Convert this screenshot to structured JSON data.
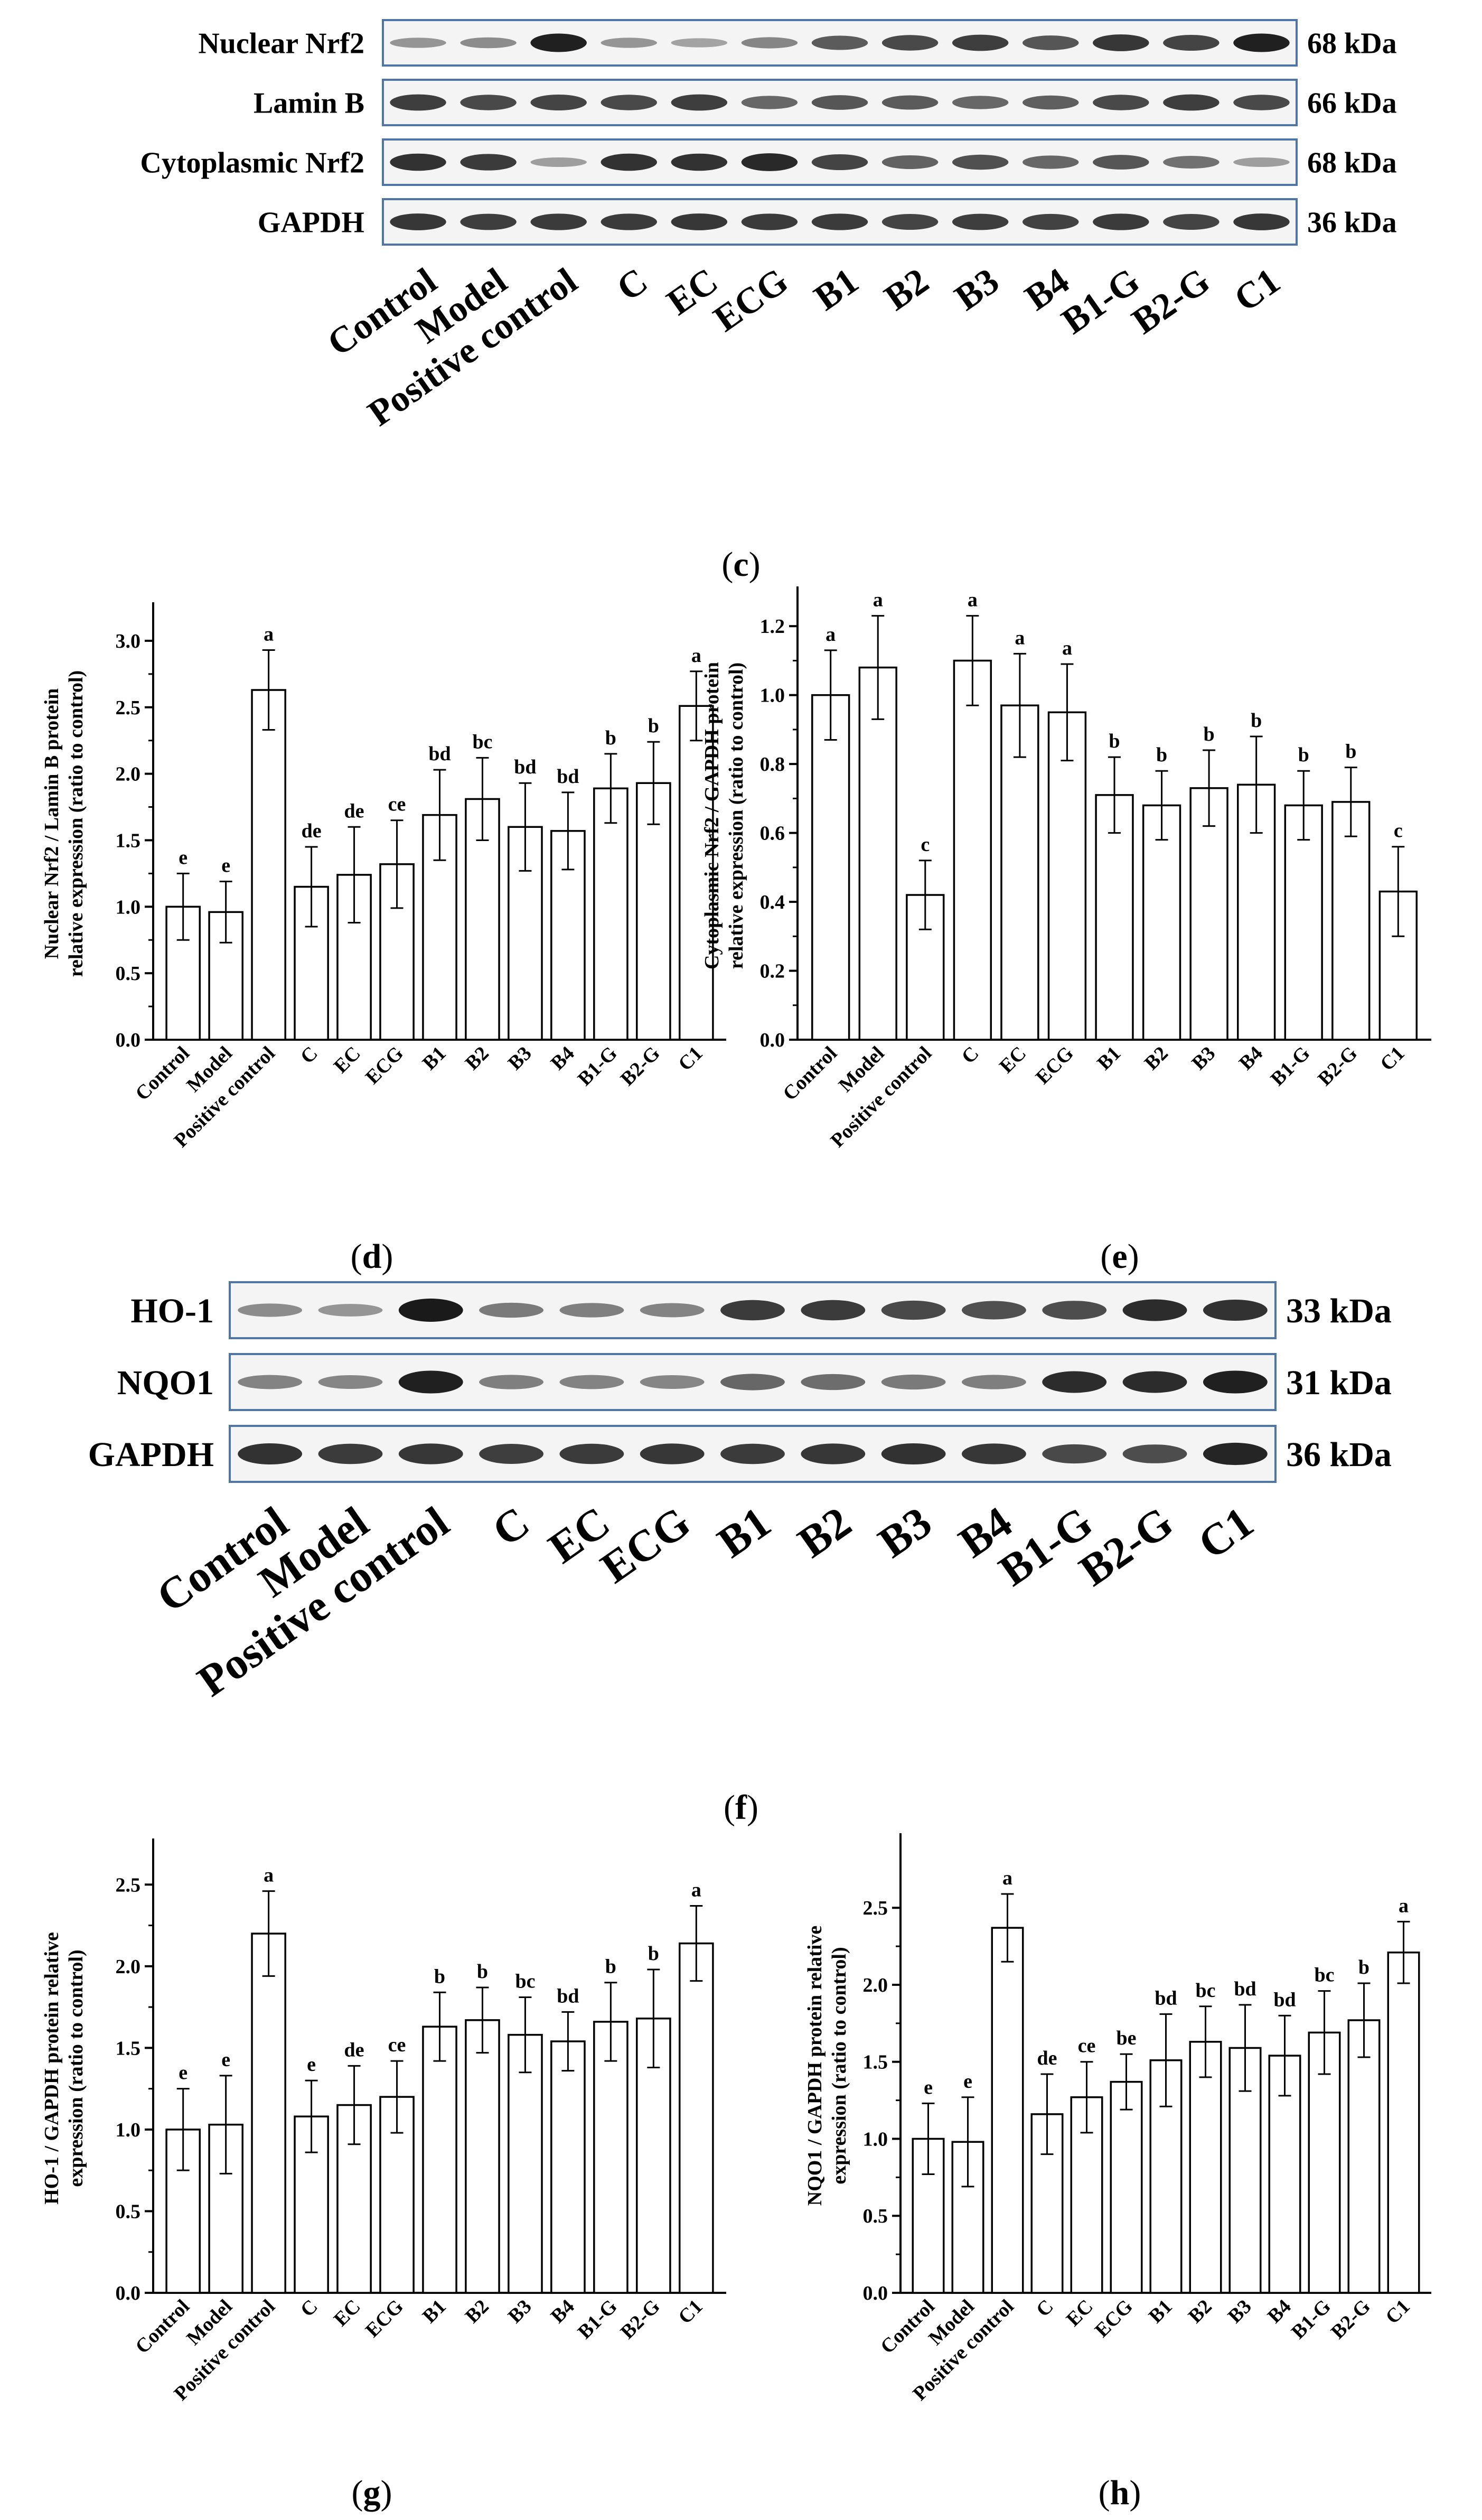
{
  "blot_c": {
    "panel_label": "c",
    "rows": [
      {
        "name": "Nuclear Nrf2",
        "mw": "68 kDa",
        "intensity": [
          0.3,
          0.35,
          0.95,
          0.3,
          0.22,
          0.38,
          0.62,
          0.72,
          0.78,
          0.65,
          0.82,
          0.75,
          0.95
        ]
      },
      {
        "name": "Lamin B",
        "mw": "66 kDa",
        "intensity": [
          0.78,
          0.72,
          0.75,
          0.72,
          0.78,
          0.55,
          0.65,
          0.62,
          0.55,
          0.6,
          0.72,
          0.78,
          0.72
        ]
      },
      {
        "name": "Cytoplasmic Nrf2",
        "mw": "68 kDa",
        "intensity": [
          0.85,
          0.8,
          0.25,
          0.85,
          0.85,
          0.9,
          0.75,
          0.58,
          0.68,
          0.55,
          0.65,
          0.5,
          0.25
        ]
      },
      {
        "name": "GAPDH",
        "mw": "36 kDa",
        "intensity": [
          0.82,
          0.78,
          0.8,
          0.8,
          0.82,
          0.8,
          0.8,
          0.75,
          0.78,
          0.76,
          0.8,
          0.75,
          0.82
        ]
      }
    ],
    "lanes": [
      "Control",
      "Model",
      "Positive control",
      "C",
      "EC",
      "ECG",
      "B1",
      "B2",
      "B3",
      "B4",
      "B1-G",
      "B2-G",
      "C1"
    ]
  },
  "blot_f": {
    "panel_label": "f",
    "rows": [
      {
        "name": "HO-1",
        "mw": "33 kDa",
        "intensity": [
          0.35,
          0.3,
          0.98,
          0.45,
          0.42,
          0.4,
          0.8,
          0.8,
          0.72,
          0.68,
          0.7,
          0.88,
          0.85
        ]
      },
      {
        "name": "NQO1",
        "mw": "31 kDa",
        "intensity": [
          0.4,
          0.38,
          0.95,
          0.42,
          0.4,
          0.38,
          0.55,
          0.52,
          0.45,
          0.42,
          0.88,
          0.88,
          0.95
        ]
      },
      {
        "name": "GAPDH",
        "mw": "36 kDa",
        "intensity": [
          0.85,
          0.8,
          0.82,
          0.78,
          0.8,
          0.82,
          0.8,
          0.82,
          0.85,
          0.82,
          0.72,
          0.7,
          0.92
        ]
      }
    ],
    "lanes": [
      "Control",
      "Model",
      "Positive control",
      "C",
      "EC",
      "ECG",
      "B1",
      "B2",
      "B3",
      "B4",
      "B1-G",
      "B2-G",
      "C1"
    ]
  },
  "chart_data": [
    {
      "id": "d",
      "panel_label": "d",
      "type": "bar",
      "ylabel_lines": [
        "Nuclear Nrf2 / Lamin B protein",
        "relative expression (ratio to control)"
      ],
      "ylim": [
        0.0,
        3.25
      ],
      "yticks": [
        "0.0",
        "0.5",
        "1.0",
        "1.5",
        "2.0",
        "2.5",
        "3.0"
      ],
      "categories": [
        "Control",
        "Model",
        "Positive control",
        "C",
        "EC",
        "ECG",
        "B1",
        "B2",
        "B3",
        "B4",
        "B1-G",
        "B2-G",
        "C1"
      ],
      "values": [
        1.0,
        0.96,
        2.63,
        1.15,
        1.24,
        1.32,
        1.69,
        1.81,
        1.6,
        1.57,
        1.89,
        1.93,
        2.51
      ],
      "errors": [
        0.25,
        0.23,
        0.3,
        0.3,
        0.36,
        0.33,
        0.34,
        0.31,
        0.33,
        0.29,
        0.26,
        0.31,
        0.26
      ],
      "letters": [
        "e",
        "e",
        "a",
        "de",
        "de",
        "ce",
        "bd",
        "bc",
        "bd",
        "bd",
        "b",
        "b",
        "a"
      ]
    },
    {
      "id": "e",
      "panel_label": "e",
      "type": "bar",
      "ylabel_lines": [
        "Cytoplasmic Nrf2 / GAPDH protein",
        "relative expression (ratio to control)"
      ],
      "ylim": [
        0.0,
        1.3
      ],
      "yticks": [
        "0.0",
        "0.2",
        "0.4",
        "0.6",
        "0.8",
        "1.0",
        "1.2"
      ],
      "categories": [
        "Control",
        "Model",
        "Positive control",
        "C",
        "EC",
        "ECG",
        "B1",
        "B2",
        "B3",
        "B4",
        "B1-G",
        "B2-G",
        "C1"
      ],
      "values": [
        1.0,
        1.08,
        0.42,
        1.1,
        0.97,
        0.95,
        0.71,
        0.68,
        0.73,
        0.74,
        0.68,
        0.69,
        0.43
      ],
      "errors": [
        0.13,
        0.15,
        0.1,
        0.13,
        0.15,
        0.14,
        0.11,
        0.1,
        0.11,
        0.14,
        0.1,
        0.1,
        0.13
      ],
      "letters": [
        "a",
        "a",
        "c",
        "a",
        "a",
        "a",
        "b",
        "b",
        "b",
        "b",
        "b",
        "b",
        "c"
      ]
    },
    {
      "id": "g",
      "panel_label": "g",
      "type": "bar",
      "ylabel_lines": [
        "HO-1 / GAPDH protein relative",
        "expression (ratio to control)"
      ],
      "ylim": [
        0.0,
        2.75
      ],
      "yticks": [
        "0.0",
        "0.5",
        "1.0",
        "1.5",
        "2.0",
        "2.5"
      ],
      "categories": [
        "Control",
        "Model",
        "Positive control",
        "C",
        "EC",
        "ECG",
        "B1",
        "B2",
        "B3",
        "B4",
        "B1-G",
        "B2-G",
        "C1"
      ],
      "values": [
        1.0,
        1.03,
        2.2,
        1.08,
        1.15,
        1.2,
        1.63,
        1.67,
        1.58,
        1.54,
        1.66,
        1.68,
        2.14
      ],
      "errors": [
        0.25,
        0.3,
        0.26,
        0.22,
        0.24,
        0.22,
        0.21,
        0.2,
        0.23,
        0.18,
        0.24,
        0.3,
        0.23
      ],
      "letters": [
        "e",
        "e",
        "a",
        "e",
        "de",
        "ce",
        "b",
        "b",
        "bc",
        "bd",
        "b",
        "b",
        "a"
      ]
    },
    {
      "id": "h",
      "panel_label": "h",
      "type": "bar",
      "ylabel_lines": [
        "NQO1 / GAPDH protein relative",
        "expression (ratio to control)"
      ],
      "ylim": [
        0.0,
        2.95
      ],
      "yticks": [
        "0.0",
        "0.5",
        "1.0",
        "1.5",
        "2.0",
        "2.5"
      ],
      "categories": [
        "Control",
        "Model",
        "Positive control",
        "C",
        "EC",
        "ECG",
        "B1",
        "B2",
        "B3",
        "B4",
        "B1-G",
        "B2-G",
        "C1"
      ],
      "values": [
        1.0,
        0.98,
        2.37,
        1.16,
        1.27,
        1.37,
        1.51,
        1.63,
        1.59,
        1.54,
        1.69,
        1.77,
        2.21
      ],
      "errors": [
        0.23,
        0.29,
        0.22,
        0.26,
        0.23,
        0.18,
        0.3,
        0.23,
        0.28,
        0.26,
        0.27,
        0.24,
        0.2
      ],
      "letters": [
        "e",
        "e",
        "a",
        "de",
        "ce",
        "be",
        "bd",
        "bc",
        "bd",
        "bd",
        "bc",
        "b",
        "a"
      ]
    }
  ]
}
